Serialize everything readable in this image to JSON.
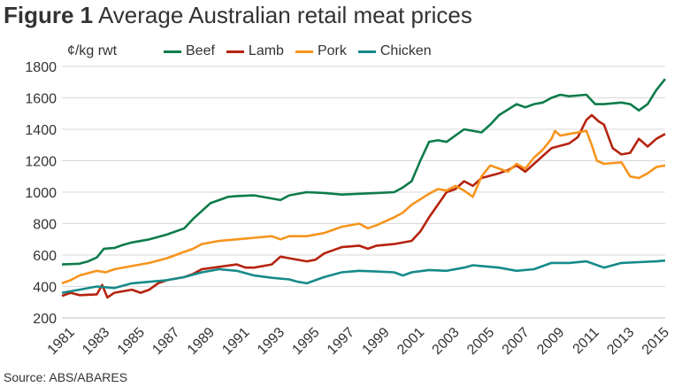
{
  "figure_label": "Figure 1",
  "title": "Average Australian retail meat prices",
  "source": "Source: ABS/ABARES",
  "chart_data": {
    "type": "line",
    "title": "Average Australian retail meat prices",
    "ylabel": "¢/kg rwt",
    "xlabel": "",
    "ylim": [
      200,
      1800
    ],
    "xlim": [
      1981,
      2015.5
    ],
    "yticks": [
      200,
      400,
      600,
      800,
      1000,
      1200,
      1400,
      1600,
      1800
    ],
    "xticks": [
      "1981",
      "1983",
      "1985",
      "1987",
      "1989",
      "1991",
      "1993",
      "1995",
      "1997",
      "1999",
      "2001",
      "2003",
      "2005",
      "2007",
      "2009",
      "2011",
      "2013",
      "2015"
    ],
    "grid": "horizontal",
    "legend_position": "top",
    "series": [
      {
        "name": "Beef",
        "color": "#0e7c4a",
        "points": [
          [
            1981,
            540
          ],
          [
            1982,
            545
          ],
          [
            1982.5,
            560
          ],
          [
            1983,
            585
          ],
          [
            1983.4,
            640
          ],
          [
            1984,
            645
          ],
          [
            1984.5,
            665
          ],
          [
            1985,
            680
          ],
          [
            1986,
            700
          ],
          [
            1987,
            730
          ],
          [
            1988,
            770
          ],
          [
            1988.5,
            830
          ],
          [
            1989,
            880
          ],
          [
            1989.5,
            930
          ],
          [
            1990,
            950
          ],
          [
            1990.5,
            970
          ],
          [
            1991,
            975
          ],
          [
            1992,
            980
          ],
          [
            1993,
            960
          ],
          [
            1993.5,
            950
          ],
          [
            1994,
            980
          ],
          [
            1995,
            1000
          ],
          [
            1996,
            995
          ],
          [
            1997,
            985
          ],
          [
            1998,
            990
          ],
          [
            1999,
            995
          ],
          [
            2000,
            1000
          ],
          [
            2000.5,
            1030
          ],
          [
            2001,
            1070
          ],
          [
            2001.5,
            1200
          ],
          [
            2002,
            1320
          ],
          [
            2002.5,
            1330
          ],
          [
            2003,
            1320
          ],
          [
            2003.5,
            1360
          ],
          [
            2004,
            1400
          ],
          [
            2005,
            1380
          ],
          [
            2005.5,
            1430
          ],
          [
            2006,
            1490
          ],
          [
            2007,
            1560
          ],
          [
            2007.5,
            1540
          ],
          [
            2008,
            1560
          ],
          [
            2008.5,
            1570
          ],
          [
            2009,
            1600
          ],
          [
            2009.5,
            1620
          ],
          [
            2010,
            1610
          ],
          [
            2011,
            1620
          ],
          [
            2011.5,
            1560
          ],
          [
            2012,
            1560
          ],
          [
            2013,
            1570
          ],
          [
            2013.5,
            1560
          ],
          [
            2014,
            1520
          ],
          [
            2014.5,
            1560
          ],
          [
            2015,
            1650
          ],
          [
            2015.5,
            1720
          ]
        ]
      },
      {
        "name": "Lamb",
        "color": "#b5230e",
        "points": [
          [
            1981,
            340
          ],
          [
            1981.5,
            360
          ],
          [
            1982,
            345
          ],
          [
            1983,
            350
          ],
          [
            1983.3,
            410
          ],
          [
            1983.6,
            330
          ],
          [
            1984,
            360
          ],
          [
            1985,
            380
          ],
          [
            1985.5,
            360
          ],
          [
            1986,
            380
          ],
          [
            1986.5,
            420
          ],
          [
            1987,
            440
          ],
          [
            1988,
            460
          ],
          [
            1988.5,
            480
          ],
          [
            1989,
            510
          ],
          [
            1990,
            525
          ],
          [
            1991,
            540
          ],
          [
            1991.5,
            520
          ],
          [
            1992,
            520
          ],
          [
            1993,
            540
          ],
          [
            1993.5,
            590
          ],
          [
            1994,
            580
          ],
          [
            1995,
            560
          ],
          [
            1995.5,
            570
          ],
          [
            1996,
            610
          ],
          [
            1997,
            650
          ],
          [
            1998,
            660
          ],
          [
            1998.5,
            640
          ],
          [
            1999,
            660
          ],
          [
            2000,
            670
          ],
          [
            2001,
            690
          ],
          [
            2001.5,
            750
          ],
          [
            2002,
            840
          ],
          [
            2003,
            1000
          ],
          [
            2003.5,
            1020
          ],
          [
            2004,
            1070
          ],
          [
            2004.5,
            1040
          ],
          [
            2005,
            1090
          ],
          [
            2006,
            1120
          ],
          [
            2006.5,
            1140
          ],
          [
            2007,
            1170
          ],
          [
            2007.5,
            1130
          ],
          [
            2008,
            1180
          ],
          [
            2009,
            1280
          ],
          [
            2010,
            1310
          ],
          [
            2010.5,
            1350
          ],
          [
            2011,
            1460
          ],
          [
            2011.3,
            1490
          ],
          [
            2011.7,
            1450
          ],
          [
            2012,
            1430
          ],
          [
            2012.5,
            1280
          ],
          [
            2013,
            1240
          ],
          [
            2013.5,
            1250
          ],
          [
            2014,
            1340
          ],
          [
            2014.5,
            1290
          ],
          [
            2015,
            1340
          ],
          [
            2015.5,
            1370
          ]
        ]
      },
      {
        "name": "Pork",
        "color": "#f7941d",
        "points": [
          [
            1981,
            420
          ],
          [
            1981.5,
            440
          ],
          [
            1982,
            470
          ],
          [
            1983,
            500
          ],
          [
            1983.5,
            490
          ],
          [
            1984,
            510
          ],
          [
            1985,
            530
          ],
          [
            1986,
            550
          ],
          [
            1987,
            580
          ],
          [
            1988,
            620
          ],
          [
            1988.5,
            640
          ],
          [
            1989,
            670
          ],
          [
            1990,
            690
          ],
          [
            1991,
            700
          ],
          [
            1992,
            710
          ],
          [
            1993,
            720
          ],
          [
            1993.5,
            700
          ],
          [
            1994,
            720
          ],
          [
            1995,
            720
          ],
          [
            1996,
            740
          ],
          [
            1997,
            780
          ],
          [
            1998,
            800
          ],
          [
            1998.5,
            770
          ],
          [
            1999,
            790
          ],
          [
            2000,
            840
          ],
          [
            2000.5,
            870
          ],
          [
            2001,
            920
          ],
          [
            2002,
            990
          ],
          [
            2002.5,
            1020
          ],
          [
            2003,
            1010
          ],
          [
            2003.5,
            1040
          ],
          [
            2004,
            1010
          ],
          [
            2004.5,
            970
          ],
          [
            2005,
            1100
          ],
          [
            2005.5,
            1170
          ],
          [
            2006,
            1150
          ],
          [
            2006.5,
            1130
          ],
          [
            2007,
            1180
          ],
          [
            2007.5,
            1150
          ],
          [
            2008,
            1220
          ],
          [
            2008.5,
            1270
          ],
          [
            2009,
            1340
          ],
          [
            2009.2,
            1390
          ],
          [
            2009.5,
            1360
          ],
          [
            2010,
            1370
          ],
          [
            2010.5,
            1380
          ],
          [
            2011,
            1390
          ],
          [
            2011.3,
            1300
          ],
          [
            2011.6,
            1200
          ],
          [
            2012,
            1180
          ],
          [
            2013,
            1190
          ],
          [
            2013.5,
            1100
          ],
          [
            2014,
            1090
          ],
          [
            2014.5,
            1120
          ],
          [
            2015,
            1160
          ],
          [
            2015.5,
            1170
          ]
        ]
      },
      {
        "name": "Chicken",
        "color": "#168a8a",
        "points": [
          [
            1981,
            360
          ],
          [
            1982,
            380
          ],
          [
            1983,
            400
          ],
          [
            1984,
            390
          ],
          [
            1985,
            420
          ],
          [
            1986,
            430
          ],
          [
            1987,
            440
          ],
          [
            1988,
            460
          ],
          [
            1989,
            490
          ],
          [
            1990,
            510
          ],
          [
            1991,
            500
          ],
          [
            1992,
            470
          ],
          [
            1993,
            455
          ],
          [
            1994,
            445
          ],
          [
            1994.5,
            430
          ],
          [
            1995,
            420
          ],
          [
            1996,
            460
          ],
          [
            1997,
            490
          ],
          [
            1998,
            500
          ],
          [
            1999,
            495
          ],
          [
            2000,
            490
          ],
          [
            2000.5,
            470
          ],
          [
            2001,
            490
          ],
          [
            2002,
            505
          ],
          [
            2003,
            500
          ],
          [
            2004,
            520
          ],
          [
            2004.5,
            535
          ],
          [
            2005,
            530
          ],
          [
            2006,
            520
          ],
          [
            2007,
            500
          ],
          [
            2008,
            510
          ],
          [
            2009,
            550
          ],
          [
            2010,
            550
          ],
          [
            2011,
            560
          ],
          [
            2012,
            520
          ],
          [
            2013,
            550
          ],
          [
            2014,
            555
          ],
          [
            2015,
            560
          ],
          [
            2015.5,
            565
          ]
        ]
      }
    ]
  }
}
